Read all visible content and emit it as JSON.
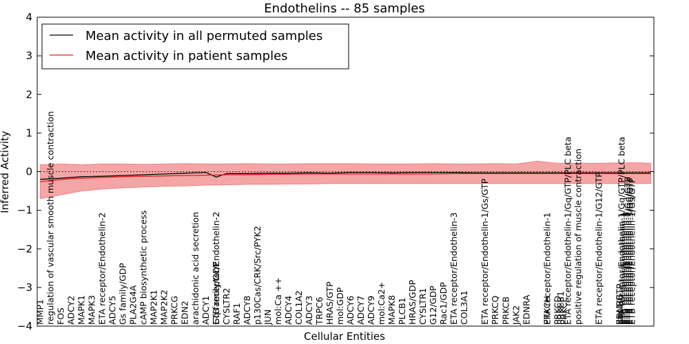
{
  "chart_data": {
    "type": "line",
    "title": "Endothelins -- 85 samples",
    "xlabel": "Cellular Entities",
    "ylabel": "Inferred Activity",
    "ylim": [
      -4,
      4
    ],
    "yticks": [
      4,
      3,
      2,
      1,
      0,
      -1,
      -2,
      -3,
      -4
    ],
    "ytick_labels": [
      "4",
      "3",
      "2",
      "1",
      "0",
      "−1",
      "−2",
      "−3",
      "−4"
    ],
    "grid": false,
    "reference_line": 0,
    "legend_position": "top-left",
    "legend": [
      {
        "label": "Mean activity in all permuted samples",
        "color": "#000000"
      },
      {
        "label": "Mean activity in patient samples",
        "color": "#e41a1c"
      }
    ],
    "categories": [
      "MMP1",
      "regulation of vascular smooth muscle contraction",
      "FOS",
      "ADCY2",
      "MAPK1",
      "MAPK3",
      "ETA receptor/Endothelin-2",
      "ADCY5",
      "Gs family/GDP",
      "PLA2G4A",
      "cAMP biosynthetic process",
      "MAP2K1",
      "MAP2K2",
      "PRKCG",
      "EDN2",
      "arachidonic acid secretion",
      "ADCY1",
      "ETB receptor/Endothelin-2",
      "Gq family/GDP",
      "CYSLTR2",
      "RAF1",
      "ADCY8",
      "p130Cas/CRK/Src/PYK2",
      "JUN",
      "mol:Ca ++",
      "ADCY4",
      "COL1A2",
      "ADCY3",
      "TRPC6",
      "HRAS/GTP",
      "mol:GDP",
      "ADCY6",
      "ADCY7",
      "ADCY9",
      "mol:Ca2+",
      "MAPK8",
      "PLCB1",
      "HRAS/GDP",
      "CYSLTR1",
      "G12/GDP",
      "Rac1/GDP",
      "ETA receptor/Endothelin-3",
      "COL3A1",
      "ETA receptor/Endothelin-1/Gs/GTP",
      "PRKCQ",
      "PRKCB",
      "JAK2",
      "EDNRA",
      "ETA receptor/Endothelin-1",
      "PRKCH",
      "PRKCD",
      "PRKCB1",
      "PRKCE",
      "ETA receptor/Endothelin-1/Gq/GTP/PLC beta",
      "positive regulation of muscle contraction",
      "ETA receptor/Endothelin-1/G12/GTP",
      "Rac1/GTP",
      "EDNRB",
      "ETA receptor/Endothelin-1/Gq/GTP/PLC beta",
      "ETB receptor/Endothelin-1",
      "ETB receptor/Endothelin-3",
      "ETB receptor/Endothelin-1/Gq/GTP",
      "ETB receptor/Endothelin-3/Gq/GTP",
      "ETB receptor/Endothelin-1/Gs/GTP"
    ],
    "label_positions": [
      0,
      1,
      2,
      3,
      4,
      5,
      6,
      7,
      8,
      9,
      10,
      11,
      12,
      13,
      14,
      15,
      16,
      17,
      17,
      18,
      19,
      20,
      21,
      22,
      23,
      24,
      25,
      26,
      27,
      28,
      29,
      30,
      31,
      32,
      33,
      34,
      35,
      36,
      37,
      38,
      39,
      40,
      41,
      43,
      44,
      45,
      46,
      47,
      49,
      49,
      50,
      50.3,
      50.6,
      51,
      52,
      54,
      56,
      56,
      56.2,
      56.4,
      56.6,
      56.8,
      57,
      57.2
    ],
    "x_range": [
      -0.3,
      59.3
    ],
    "series": [
      {
        "name": "Mean activity in all permuted samples",
        "color": "#000000",
        "x": [
          0,
          2,
          4,
          6,
          8,
          10,
          12,
          14,
          16,
          17,
          18,
          20,
          22,
          24,
          26,
          28,
          30,
          32,
          34,
          36,
          38,
          40,
          42,
          44,
          46,
          48,
          50,
          52,
          54,
          56,
          58,
          59
        ],
        "values": [
          -0.2,
          -0.17,
          -0.13,
          -0.12,
          -0.1,
          -0.08,
          -0.06,
          -0.04,
          -0.02,
          -0.14,
          -0.05,
          -0.05,
          -0.04,
          -0.04,
          -0.03,
          -0.04,
          -0.02,
          -0.02,
          -0.03,
          -0.02,
          -0.02,
          -0.02,
          -0.03,
          -0.03,
          -0.03,
          -0.03,
          -0.03,
          -0.03,
          -0.03,
          -0.03,
          -0.03,
          -0.03
        ]
      },
      {
        "name": "Mean activity in patient samples",
        "color": "#e41a1c",
        "x": [
          0,
          2,
          4,
          6,
          8,
          10,
          12,
          14,
          16,
          18,
          20,
          22,
          24,
          26,
          28,
          30,
          32,
          34,
          36,
          38,
          40,
          42,
          44,
          46,
          48,
          50,
          52,
          54,
          56,
          58,
          59
        ],
        "values": [
          -0.26,
          -0.2,
          -0.17,
          -0.15,
          -0.13,
          -0.12,
          -0.11,
          -0.1,
          -0.09,
          -0.08,
          -0.08,
          -0.07,
          -0.07,
          -0.06,
          -0.06,
          -0.06,
          -0.06,
          -0.06,
          -0.06,
          -0.06,
          -0.05,
          -0.05,
          -0.05,
          -0.05,
          -0.05,
          -0.05,
          -0.05,
          -0.05,
          -0.05,
          -0.05,
          -0.05
        ]
      }
    ],
    "band": {
      "name": "patient samples spread",
      "color": "#f08080",
      "x": [
        0,
        2,
        4,
        6,
        8,
        10,
        12,
        14,
        16,
        18,
        20,
        22,
        24,
        26,
        28,
        30,
        32,
        34,
        36,
        38,
        40,
        42,
        44,
        46,
        48,
        50,
        52,
        54,
        56,
        58,
        59
      ],
      "upper": [
        0.18,
        0.2,
        0.18,
        0.2,
        0.2,
        0.19,
        0.2,
        0.21,
        0.2,
        0.2,
        0.21,
        0.2,
        0.2,
        0.21,
        0.21,
        0.21,
        0.2,
        0.2,
        0.2,
        0.21,
        0.2,
        0.2,
        0.21,
        0.2,
        0.27,
        0.22,
        0.22,
        0.22,
        0.23,
        0.23,
        0.22
      ],
      "lower": [
        -0.7,
        -0.6,
        -0.5,
        -0.45,
        -0.42,
        -0.4,
        -0.38,
        -0.37,
        -0.35,
        -0.34,
        -0.33,
        -0.33,
        -0.32,
        -0.32,
        -0.31,
        -0.31,
        -0.31,
        -0.31,
        -0.31,
        -0.31,
        -0.31,
        -0.31,
        -0.31,
        -0.31,
        -0.31,
        -0.31,
        -0.31,
        -0.31,
        -0.31,
        -0.31,
        -0.31
      ]
    }
  }
}
